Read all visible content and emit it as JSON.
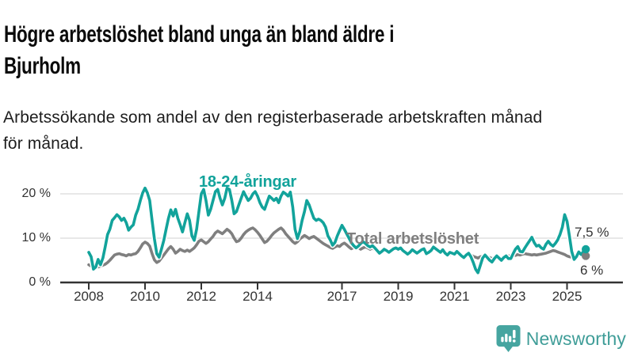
{
  "header": {
    "title_line1": "Högre arbetslöshet bland unga än bland äldre i",
    "title_line2": "Bjurholm",
    "subtitle_line1": "Arbetssökande som andel av den registerbaserade arbetskraften månad",
    "subtitle_line2": "för månad."
  },
  "colors": {
    "youth": "#12a39b",
    "total": "#7f7f7f",
    "grid": "#e0e0e0",
    "axis": "#333333",
    "halo": "#ffffff",
    "logo_icon": "#46a5a0",
    "logo_text": "#3f9d98"
  },
  "logo": {
    "name": "Newsworthy"
  },
  "chart_data": {
    "type": "line",
    "title": "Högre arbetslöshet bland unga än bland äldre i Bjurholm",
    "subtitle": "Arbetssökande som andel av den registerbaserade arbetskraften månad för månad.",
    "x_unit": "month",
    "x_start": "2008-01",
    "x_end": "2025-09",
    "ylim": [
      0,
      25
    ],
    "grid": true,
    "legend_position": "inline-labels",
    "y_ticks": [
      {
        "value": 0,
        "label": "0 %"
      },
      {
        "value": 10,
        "label": "10 %"
      },
      {
        "value": 20,
        "label": "20 %"
      }
    ],
    "x_ticks": [
      {
        "year": 2008,
        "label": "2008"
      },
      {
        "year": 2010,
        "label": "2010"
      },
      {
        "year": 2012,
        "label": "2012"
      },
      {
        "year": 2014,
        "label": "2014"
      },
      {
        "year": 2017,
        "label": "2017"
      },
      {
        "year": 2019,
        "label": "2019"
      },
      {
        "year": 2021,
        "label": "2021"
      },
      {
        "year": 2023,
        "label": "2023"
      },
      {
        "year": 2025,
        "label": "2025"
      }
    ],
    "series": [
      {
        "name": "18-24-åringar",
        "color_key": "youth",
        "end_label": "7,5 %",
        "end_value": 7.5,
        "values": [
          6.8,
          5.8,
          3.0,
          3.5,
          5.2,
          4.0,
          5.5,
          8.0,
          10.8,
          12.0,
          14.0,
          14.6,
          15.3,
          14.8,
          14.0,
          14.5,
          13.5,
          11.8,
          12.5,
          13.0,
          15.2,
          16.5,
          18.5,
          20.2,
          21.3,
          20.2,
          18.5,
          14.0,
          9.9,
          6.5,
          5.7,
          7.5,
          9.5,
          12.0,
          14.5,
          16.4,
          15.0,
          16.5,
          14.5,
          13.0,
          11.4,
          13.5,
          15.5,
          14.0,
          10.5,
          9.5,
          12.0,
          16.0,
          20.0,
          21.0,
          18.5,
          15.2,
          16.5,
          18.5,
          20.5,
          21.0,
          19.0,
          17.5,
          19.0,
          21.3,
          21.0,
          18.5,
          15.5,
          16.0,
          17.5,
          19.0,
          20.5,
          19.5,
          18.5,
          19.0,
          20.0,
          20.5,
          19.5,
          18.0,
          17.0,
          16.5,
          18.0,
          19.5,
          19.0,
          18.5,
          19.0,
          18.0,
          19.5,
          20.4,
          20.0,
          19.5,
          20.4,
          17.0,
          12.0,
          9.9,
          11.5,
          14.0,
          16.0,
          18.5,
          17.5,
          16.0,
          14.5,
          14.0,
          14.3,
          14.0,
          13.5,
          12.5,
          10.5,
          9.6,
          8.4,
          9.0,
          10.5,
          11.7,
          12.9,
          12.0,
          11.0,
          10.0,
          9.0,
          8.3,
          7.8,
          8.2,
          8.8,
          9.2,
          8.8,
          8.3,
          8.0,
          8.3,
          7.8,
          7.2,
          6.6,
          7.0,
          7.5,
          7.2,
          6.8,
          7.2,
          7.6,
          7.8,
          7.5,
          7.8,
          7.2,
          6.8,
          6.4,
          6.8,
          7.4,
          7.0,
          6.6,
          7.0,
          7.4,
          7.6,
          6.5,
          6.8,
          7.2,
          8.0,
          7.6,
          7.2,
          6.8,
          7.4,
          6.6,
          6.2,
          6.8,
          6.6,
          6.4,
          7.0,
          6.5,
          6.0,
          5.6,
          6.2,
          6.6,
          5.8,
          4.5,
          3.0,
          2.2,
          3.8,
          5.5,
          6.2,
          5.6,
          5.0,
          4.6,
          5.4,
          6.0,
          5.5,
          5.0,
          5.6,
          6.0,
          5.4,
          5.4,
          6.5,
          7.5,
          8.1,
          7.0,
          6.9,
          7.8,
          8.6,
          9.4,
          10.2,
          9.0,
          8.2,
          8.4,
          7.8,
          7.5,
          8.6,
          9.3,
          8.6,
          8.2,
          8.8,
          9.6,
          10.8,
          12.5,
          15.3,
          13.8,
          10.5,
          7.0,
          5.2,
          5.8,
          6.9,
          6.3,
          7.0,
          7.5
        ]
      },
      {
        "name": "Total arbetslöshet",
        "color_key": "total",
        "end_label": "6 %",
        "end_value": 6.0,
        "values": [
          4.0,
          3.7,
          3.4,
          3.3,
          3.5,
          3.7,
          3.9,
          4.1,
          4.5,
          5.0,
          5.6,
          6.2,
          6.4,
          6.5,
          6.3,
          6.2,
          6.0,
          6.3,
          6.2,
          6.4,
          6.5,
          7.0,
          7.8,
          8.7,
          9.1,
          8.8,
          8.2,
          6.5,
          5.1,
          4.5,
          4.8,
          5.5,
          6.2,
          6.9,
          7.6,
          8.1,
          7.5,
          6.6,
          7.0,
          7.5,
          7.2,
          7.0,
          7.3,
          7.0,
          7.4,
          7.8,
          8.5,
          9.3,
          9.6,
          9.2,
          8.8,
          9.2,
          9.8,
          10.4,
          11.2,
          11.6,
          11.3,
          11.0,
          11.5,
          12.0,
          11.6,
          11.0,
          10.0,
          9.2,
          9.4,
          10.0,
          10.8,
          11.4,
          11.8,
          12.1,
          12.3,
          11.9,
          11.3,
          10.6,
          9.8,
          9.0,
          9.3,
          9.9,
          10.6,
          11.2,
          11.6,
          12.0,
          12.3,
          11.8,
          11.0,
          10.4,
          9.8,
          9.2,
          8.8,
          9.2,
          9.8,
          10.2,
          10.6,
          10.3,
          9.9,
          10.2,
          10.4,
          10.0,
          9.6,
          9.2,
          8.8,
          8.5,
          8.2,
          7.9,
          7.7,
          8.0,
          8.3,
          8.1,
          8.6,
          8.9,
          8.5,
          8.0,
          7.6,
          7.9,
          8.2,
          7.9,
          7.5,
          7.8,
          8.0,
          7.8,
          7.5,
          7.8,
          7.4,
          7.0,
          6.8,
          7.1,
          7.4,
          7.2,
          6.9,
          7.2,
          7.4,
          7.5,
          7.3,
          7.5,
          7.2,
          6.9,
          6.7,
          7.0,
          7.3,
          7.0,
          6.8,
          7.0,
          7.2,
          7.3,
          6.8,
          6.6,
          7.0,
          7.6,
          7.4,
          7.2,
          7.0,
          6.8,
          6.6,
          6.4,
          6.3,
          6.5,
          6.6,
          6.8,
          6.5,
          6.2,
          6.0,
          6.2,
          6.4,
          6.2,
          5.9,
          5.7,
          5.5,
          5.8,
          5.9,
          6.1,
          5.8,
          5.6,
          5.4,
          5.6,
          5.9,
          5.7,
          5.5,
          5.7,
          5.9,
          6.0,
          6.0,
          6.2,
          6.1,
          6.3,
          6.2,
          6.4,
          6.5,
          6.4,
          6.3,
          6.2,
          6.3,
          6.2,
          6.3,
          6.4,
          6.5,
          6.6,
          6.8,
          7.0,
          7.2,
          7.1,
          6.9,
          6.7,
          6.5,
          6.3,
          6.0,
          5.8,
          5.7,
          5.9,
          6.1,
          6.3,
          6.5,
          6.2,
          6.0
        ]
      }
    ]
  }
}
